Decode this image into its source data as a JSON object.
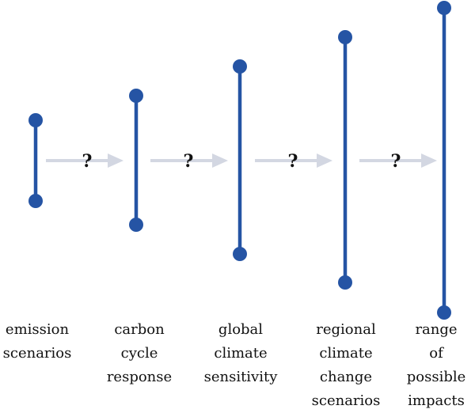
{
  "stages": [
    {
      "id": "emission",
      "label_lines": [
        "emission",
        "scenarios"
      ]
    },
    {
      "id": "carbon",
      "label_lines": [
        "carbon",
        "cycle",
        "response"
      ]
    },
    {
      "id": "global",
      "label_lines": [
        "global",
        "climate",
        "sensitivity"
      ]
    },
    {
      "id": "regional",
      "label_lines": [
        "regional",
        "climate",
        "change",
        "scenarios"
      ]
    },
    {
      "id": "impacts",
      "label_lines": [
        "range",
        "of",
        "possible",
        "impacts"
      ]
    }
  ],
  "arrows": [
    {
      "label": "?"
    },
    {
      "label": "?"
    },
    {
      "label": "?"
    },
    {
      "label": "?"
    }
  ],
  "colors": {
    "bar": "#2554a4",
    "arrow": "#d3d7e2",
    "text": "#111111"
  }
}
